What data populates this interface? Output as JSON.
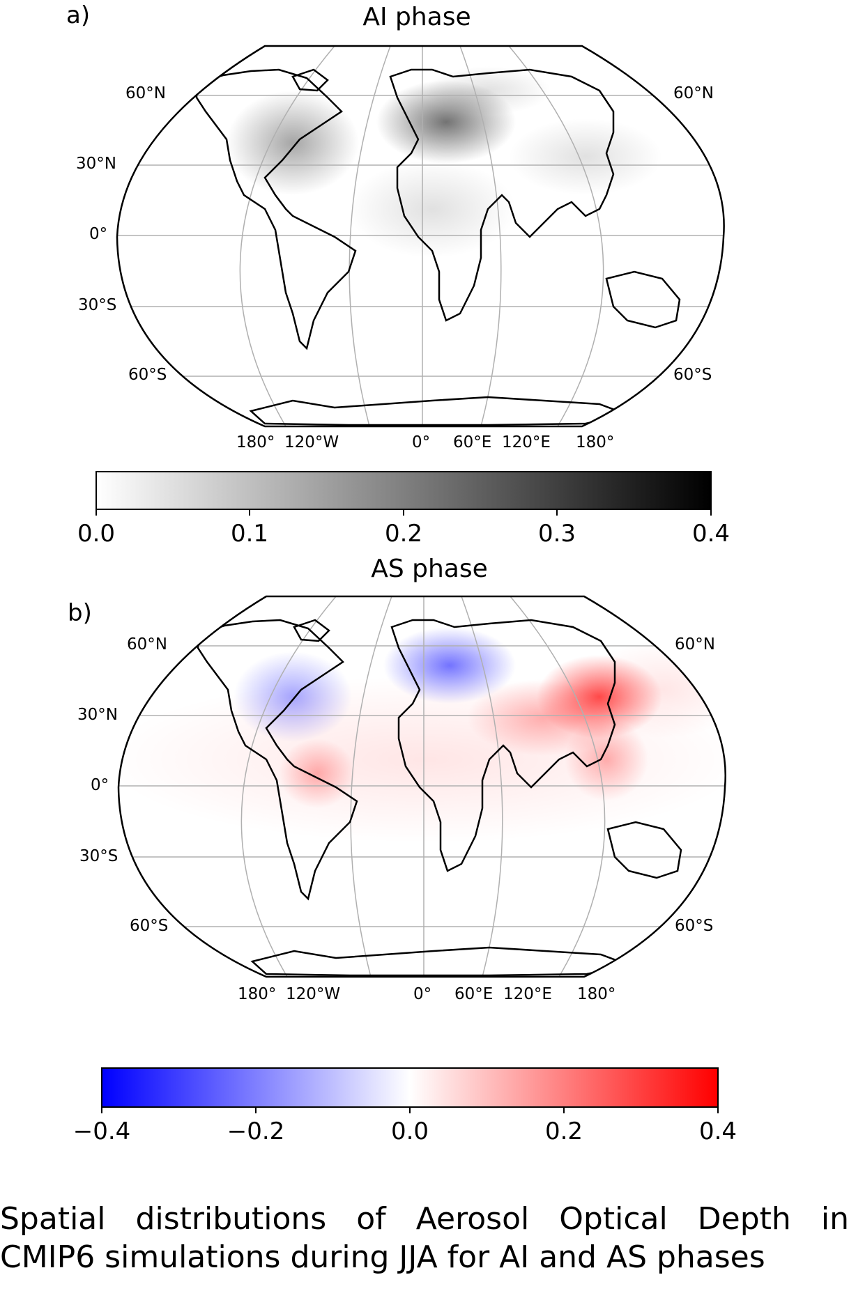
{
  "panels": [
    {
      "letter": "a)",
      "title": "AI phase",
      "lat_labels": [
        "60°N",
        "30°N",
        "0°",
        "30°S",
        "60°S"
      ],
      "lat_labels_right": [
        "60°N",
        "60°S"
      ],
      "lon_labels": [
        "180°",
        "120°W",
        "0°",
        "60°E",
        "120°E",
        "180°"
      ],
      "colorbar": {
        "colormap": "Greys",
        "colors": [
          "#ffffff",
          "#000000"
        ],
        "ticks": [
          "0.0",
          "0.1",
          "0.2",
          "0.3",
          "0.4"
        ],
        "range": [
          0.0,
          0.4
        ]
      }
    },
    {
      "letter": "b)",
      "title": "AS phase",
      "lat_labels": [
        "60°N",
        "30°N",
        "0°",
        "30°S",
        "60°S"
      ],
      "lat_labels_right": [
        "60°N",
        "60°S"
      ],
      "lon_labels": [
        "180°",
        "120°W",
        "0°",
        "60°E",
        "120°E",
        "180°"
      ],
      "colorbar": {
        "colormap": "bwr",
        "colors": [
          "#0000ff",
          "#ffffff",
          "#ff0000"
        ],
        "ticks": [
          "−0.4",
          "−0.2",
          "0.0",
          "0.2",
          "0.4"
        ],
        "range": [
          -0.4,
          0.4
        ]
      }
    }
  ],
  "caption": {
    "line1": [
      "Spatial",
      "distributions",
      "of",
      "Aerosol",
      "Optical",
      "Depth",
      "in"
    ],
    "line2": "CMIP6 simulations during JJA for AI and AS phases"
  }
}
